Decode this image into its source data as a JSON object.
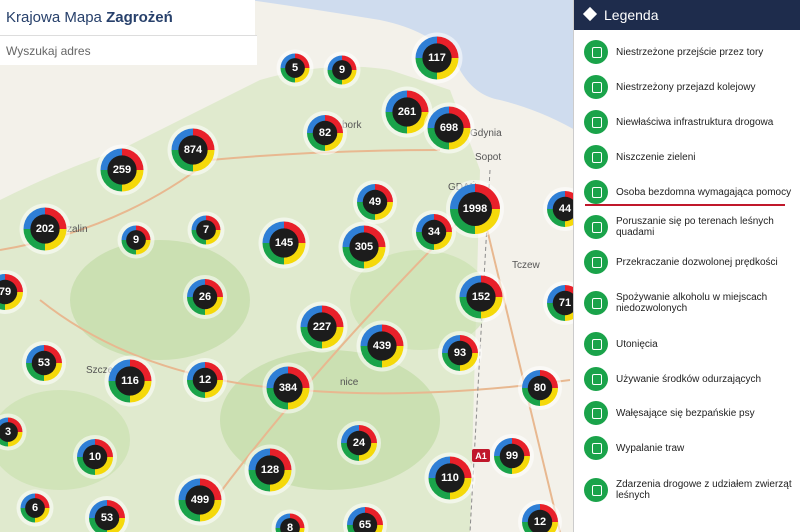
{
  "header": {
    "title_light": "Krajowa Mapa",
    "title_bold": "Zagrożeń Bezpieczeństwa",
    "search_placeholder": "Wyszukaj adres"
  },
  "legend": {
    "title": "Legenda",
    "items": [
      "Niestrzeżone przejście przez tory",
      "Niestrzeżony przejazd kolejowy",
      "Niewłaściwa infrastruktura drogowa",
      "Niszczenie zieleni",
      "Osoba bezdomna wymagająca pomocy",
      "Poruszanie się po terenach leśnych quadami",
      "Przekraczanie dozwolonej prędkości",
      "Spożywanie alkoholu w miejscach niedozwolonych",
      "Utonięcia",
      "Używanie środków odurzających",
      "Wałęsające się bezpańskie psy",
      "Wypalanie traw",
      "Zdarzenia drogowe z udziałem zwierząt leśnych"
    ]
  },
  "map_labels": [
    "szalin",
    "Szcze",
    "bork",
    "nice",
    "Gdynia",
    "Sopot",
    "GDAŃ",
    "Tczew",
    "A1"
  ],
  "clusters": [
    "5",
    "9",
    "117",
    "261",
    "82",
    "698",
    "874",
    "259",
    "1998",
    "44",
    "202",
    "9",
    "7",
    "145",
    "305",
    "49",
    "34",
    "79",
    "26",
    "152",
    "71",
    "227",
    "439",
    "93",
    "53",
    "116",
    "12",
    "384",
    "80",
    "3",
    "24",
    "10",
    "128",
    "99",
    "110",
    "499",
    "6",
    "53",
    "8",
    "65",
    "12"
  ]
}
